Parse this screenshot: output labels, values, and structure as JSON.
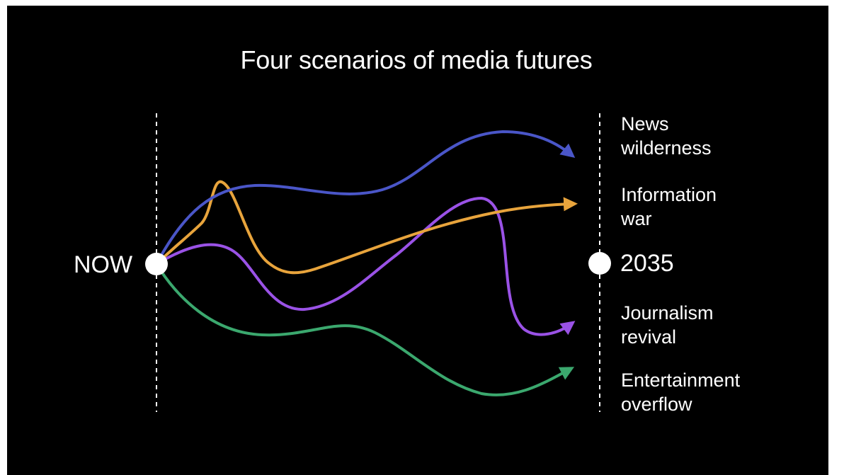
{
  "title": "Four scenarios of media futures",
  "start_label": "NOW",
  "end_label": "2035",
  "colors": {
    "background": "#000000",
    "text": "#ffffff",
    "news_wilderness": "#4a56c8",
    "information_war": "#e8a43c",
    "journalism_revival": "#9a52e6",
    "entertainment_overflow": "#3ba86e"
  },
  "scenarios": [
    {
      "line1": "News",
      "line2": "wilderness"
    },
    {
      "line1": "Information",
      "line2": "war"
    },
    {
      "line1": "Journalism",
      "line2": "revival"
    },
    {
      "line1": "Entertainment",
      "line2": "overflow"
    }
  ]
}
